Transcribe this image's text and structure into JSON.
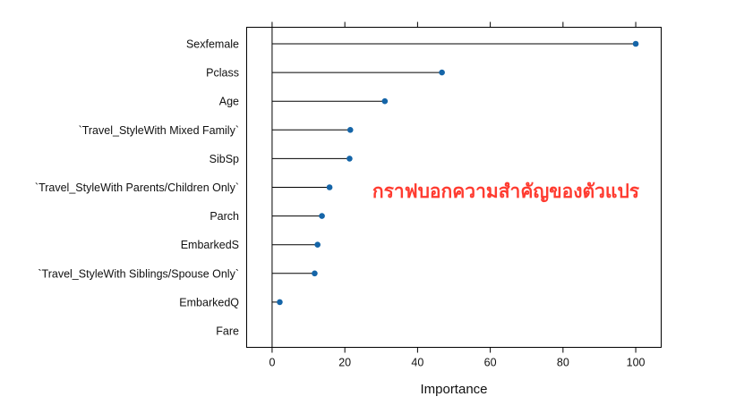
{
  "chart_data": {
    "type": "lollipop",
    "xlabel": "Importance",
    "xlim": [
      -7,
      107
    ],
    "x_ticks": [
      0,
      20,
      40,
      60,
      80,
      100
    ],
    "grid": false,
    "categories": [
      "Sexfemale",
      "Pclass",
      "Age",
      "`Travel_StyleWith Mixed Family`",
      "SibSp",
      "`Travel_StyleWith Parents/Children Only`",
      "Parch",
      "EmbarkedS",
      "`Travel_StyleWith Siblings/Spouse Only`",
      "EmbarkedQ",
      "Fare"
    ],
    "values": [
      100,
      46.7,
      31,
      21.5,
      21.3,
      15.8,
      13.7,
      12.5,
      11.7,
      2.1,
      0
    ],
    "point_color": "#1565a8",
    "annotation": "กราฟบอกความสำคัญของตัวแปร",
    "annotation_color": "#ff3b30"
  }
}
